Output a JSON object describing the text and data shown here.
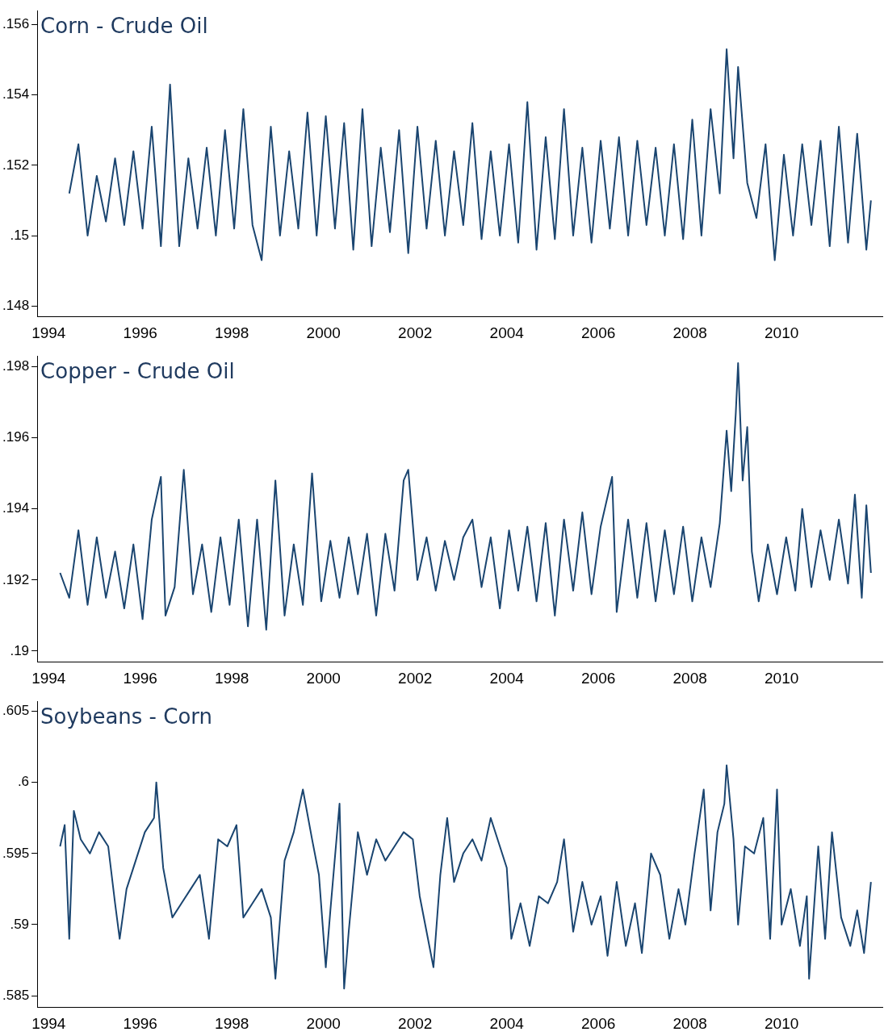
{
  "chart_data": [
    {
      "type": "line",
      "title": "Corn - Crude Oil",
      "grid": false,
      "legend": false,
      "marker": "none",
      "line_style": "solid",
      "xlim": [
        1993.75,
        2012.2
      ],
      "xticks": [
        1994,
        1996,
        1998,
        2000,
        2002,
        2004,
        2006,
        2008,
        2010
      ],
      "ylim": [
        0.1477,
        0.1564
      ],
      "yticks": [
        {
          "value": 0.148,
          "label": ".148"
        },
        {
          "value": 0.15,
          "label": ".15"
        },
        {
          "value": 0.152,
          "label": ".152"
        },
        {
          "value": 0.154,
          "label": ".154"
        },
        {
          "value": 0.156,
          "label": ".156"
        }
      ],
      "series": [
        {
          "color": "#1a4570",
          "x": [
            1994.45,
            1994.65,
            1994.85,
            1995.05,
            1995.25,
            1995.45,
            1995.65,
            1995.85,
            1996.05,
            1996.25,
            1996.45,
            1996.65,
            1996.85,
            1997.05,
            1997.25,
            1997.45,
            1997.65,
            1997.85,
            1998.05,
            1998.25,
            1998.45,
            1998.65,
            1998.85,
            1999.05,
            1999.25,
            1999.45,
            1999.65,
            1999.85,
            2000.05,
            2000.25,
            2000.45,
            2000.65,
            2000.85,
            2001.05,
            2001.25,
            2001.45,
            2001.65,
            2001.85,
            2002.05,
            2002.25,
            2002.45,
            2002.65,
            2002.85,
            2003.05,
            2003.25,
            2003.45,
            2003.65,
            2003.85,
            2004.05,
            2004.25,
            2004.45,
            2004.65,
            2004.85,
            2005.05,
            2005.25,
            2005.45,
            2005.65,
            2005.85,
            2006.05,
            2006.25,
            2006.45,
            2006.65,
            2006.85,
            2007.05,
            2007.25,
            2007.45,
            2007.65,
            2007.85,
            2008.05,
            2008.25,
            2008.45,
            2008.65,
            2008.8,
            2008.95,
            2009.05,
            2009.25,
            2009.45,
            2009.65,
            2009.85,
            2010.05,
            2010.25,
            2010.45,
            2010.65,
            2010.85,
            2011.05,
            2011.25,
            2011.45,
            2011.65,
            2011.85,
            2011.95
          ],
          "values": [
            0.1512,
            0.1526,
            0.15,
            0.1517,
            0.1504,
            0.1522,
            0.1503,
            0.1524,
            0.1502,
            0.1531,
            0.1497,
            0.1543,
            0.1497,
            0.1522,
            0.1502,
            0.1525,
            0.15,
            0.153,
            0.1502,
            0.1536,
            0.1503,
            0.1493,
            0.1531,
            0.15,
            0.1524,
            0.1502,
            0.1535,
            0.15,
            0.1534,
            0.1502,
            0.1532,
            0.1496,
            0.1536,
            0.1497,
            0.1525,
            0.1501,
            0.153,
            0.1495,
            0.1531,
            0.1502,
            0.1527,
            0.15,
            0.1524,
            0.1503,
            0.1532,
            0.1499,
            0.1524,
            0.15,
            0.1526,
            0.1498,
            0.1538,
            0.1496,
            0.1528,
            0.1499,
            0.1536,
            0.15,
            0.1525,
            0.1498,
            0.1527,
            0.1502,
            0.1528,
            0.15,
            0.1527,
            0.1503,
            0.1525,
            0.15,
            0.1526,
            0.1499,
            0.1533,
            0.15,
            0.1536,
            0.1512,
            0.1553,
            0.1522,
            0.1548,
            0.1515,
            0.1505,
            0.1526,
            0.1493,
            0.1523,
            0.15,
            0.1526,
            0.1503,
            0.1527,
            0.1497,
            0.1531,
            0.1498,
            0.1529,
            0.1496,
            0.151
          ]
        }
      ]
    },
    {
      "type": "line",
      "title": "Copper - Crude Oil",
      "grid": false,
      "legend": false,
      "marker": "none",
      "line_style": "solid",
      "xlim": [
        1993.75,
        2012.2
      ],
      "xticks": [
        1994,
        1996,
        1998,
        2000,
        2002,
        2004,
        2006,
        2008,
        2010
      ],
      "ylim": [
        0.1897,
        0.1983
      ],
      "yticks": [
        {
          "value": 0.19,
          "label": ".19"
        },
        {
          "value": 0.192,
          "label": ".192"
        },
        {
          "value": 0.194,
          "label": ".194"
        },
        {
          "value": 0.196,
          "label": ".196"
        },
        {
          "value": 0.198,
          "label": ".198"
        }
      ],
      "series": [
        {
          "color": "#1a4570",
          "x": [
            1994.25,
            1994.45,
            1994.65,
            1994.85,
            1995.05,
            1995.25,
            1995.45,
            1995.65,
            1995.85,
            1996.05,
            1996.25,
            1996.45,
            1996.55,
            1996.75,
            1996.95,
            1997.15,
            1997.35,
            1997.55,
            1997.75,
            1997.95,
            1998.15,
            1998.35,
            1998.55,
            1998.75,
            1998.95,
            1999.15,
            1999.35,
            1999.55,
            1999.75,
            1999.95,
            2000.15,
            2000.35,
            2000.55,
            2000.75,
            2000.95,
            2001.15,
            2001.35,
            2001.55,
            2001.75,
            2001.85,
            2002.05,
            2002.25,
            2002.45,
            2002.65,
            2002.85,
            2003.05,
            2003.25,
            2003.45,
            2003.65,
            2003.85,
            2004.05,
            2004.25,
            2004.45,
            2004.65,
            2004.85,
            2005.05,
            2005.25,
            2005.45,
            2005.65,
            2005.85,
            2006.05,
            2006.3,
            2006.4,
            2006.65,
            2006.85,
            2007.05,
            2007.25,
            2007.45,
            2007.65,
            2007.85,
            2008.05,
            2008.25,
            2008.45,
            2008.65,
            2008.8,
            2008.9,
            2009.0,
            2009.05,
            2009.15,
            2009.25,
            2009.35,
            2009.5,
            2009.7,
            2009.9,
            2010.1,
            2010.3,
            2010.45,
            2010.65,
            2010.85,
            2011.05,
            2011.25,
            2011.45,
            2011.6,
            2011.75,
            2011.85,
            2011.95
          ],
          "values": [
            0.1922,
            0.1915,
            0.1934,
            0.1913,
            0.1932,
            0.1915,
            0.1928,
            0.1912,
            0.193,
            0.1909,
            0.1937,
            0.1949,
            0.191,
            0.1918,
            0.1951,
            0.1916,
            0.193,
            0.1911,
            0.1932,
            0.1913,
            0.1937,
            0.1907,
            0.1937,
            0.1906,
            0.1948,
            0.191,
            0.193,
            0.1913,
            0.195,
            0.1914,
            0.1931,
            0.1915,
            0.1932,
            0.1916,
            0.1933,
            0.191,
            0.1933,
            0.1917,
            0.1948,
            0.1951,
            0.192,
            0.1932,
            0.1917,
            0.1931,
            0.192,
            0.1932,
            0.1937,
            0.1918,
            0.1932,
            0.1912,
            0.1934,
            0.1917,
            0.1935,
            0.1914,
            0.1936,
            0.191,
            0.1937,
            0.1917,
            0.1939,
            0.1916,
            0.1935,
            0.1949,
            0.1911,
            0.1937,
            0.1915,
            0.1936,
            0.1914,
            0.1934,
            0.1916,
            0.1935,
            0.1914,
            0.1932,
            0.1918,
            0.1936,
            0.1962,
            0.1945,
            0.1967,
            0.1981,
            0.1948,
            0.1963,
            0.1928,
            0.1914,
            0.193,
            0.1916,
            0.1932,
            0.1917,
            0.194,
            0.1918,
            0.1934,
            0.192,
            0.1937,
            0.1919,
            0.1944,
            0.1915,
            0.1941,
            0.1922
          ]
        }
      ]
    },
    {
      "type": "line",
      "title": "Soybeans - Corn",
      "grid": false,
      "legend": false,
      "marker": "none",
      "line_style": "solid",
      "xlim": [
        1993.75,
        2012.2
      ],
      "xticks": [
        1994,
        1996,
        1998,
        2000,
        2002,
        2004,
        2006,
        2008,
        2010
      ],
      "ylim": [
        0.5842,
        0.6057
      ],
      "yticks": [
        {
          "value": 0.585,
          "label": ".585"
        },
        {
          "value": 0.59,
          "label": ".59"
        },
        {
          "value": 0.595,
          "label": ".595"
        },
        {
          "value": 0.6,
          "label": ".6"
        },
        {
          "value": 0.605,
          "label": ".605"
        }
      ],
      "series": [
        {
          "color": "#1a4570",
          "x": [
            1994.25,
            1994.35,
            1994.45,
            1994.55,
            1994.7,
            1994.9,
            1995.1,
            1995.3,
            1995.45,
            1995.55,
            1995.7,
            1995.9,
            1996.1,
            1996.3,
            1996.35,
            1996.5,
            1996.7,
            1996.9,
            1997.1,
            1997.3,
            1997.5,
            1997.7,
            1997.9,
            1998.1,
            1998.25,
            1998.45,
            1998.65,
            1998.85,
            1998.95,
            1999.15,
            1999.35,
            1999.55,
            1999.75,
            1999.9,
            2000.05,
            2000.15,
            2000.35,
            2000.45,
            2000.55,
            2000.75,
            2000.95,
            2001.15,
            2001.35,
            2001.55,
            2001.75,
            2001.95,
            2002.1,
            2002.25,
            2002.4,
            2002.55,
            2002.7,
            2002.85,
            2003.05,
            2003.25,
            2003.45,
            2003.65,
            2003.85,
            2004.0,
            2004.1,
            2004.3,
            2004.5,
            2004.7,
            2004.9,
            2005.1,
            2005.25,
            2005.45,
            2005.65,
            2005.85,
            2006.05,
            2006.2,
            2006.4,
            2006.6,
            2006.8,
            2006.95,
            2007.15,
            2007.35,
            2007.55,
            2007.75,
            2007.9,
            2008.1,
            2008.3,
            2008.45,
            2008.6,
            2008.75,
            2008.8,
            2008.95,
            2009.05,
            2009.2,
            2009.4,
            2009.6,
            2009.75,
            2009.9,
            2010.0,
            2010.2,
            2010.4,
            2010.55,
            2010.6,
            2010.8,
            2010.95,
            2011.1,
            2011.3,
            2011.5,
            2011.65,
            2011.8,
            2011.95
          ],
          "values": [
            0.5955,
            0.597,
            0.589,
            0.598,
            0.596,
            0.595,
            0.5965,
            0.5955,
            0.5915,
            0.589,
            0.5925,
            0.5945,
            0.5965,
            0.5975,
            0.6,
            0.594,
            0.5905,
            0.5915,
            0.5925,
            0.5935,
            0.589,
            0.596,
            0.5955,
            0.597,
            0.5905,
            0.5915,
            0.5925,
            0.5905,
            0.5862,
            0.5945,
            0.5965,
            0.5995,
            0.596,
            0.5935,
            0.587,
            0.591,
            0.5985,
            0.5855,
            0.5895,
            0.5965,
            0.5935,
            0.596,
            0.5945,
            0.5955,
            0.5965,
            0.596,
            0.592,
            0.5895,
            0.587,
            0.5935,
            0.5975,
            0.593,
            0.595,
            0.596,
            0.5945,
            0.5975,
            0.5955,
            0.594,
            0.589,
            0.5915,
            0.5885,
            0.592,
            0.5915,
            0.593,
            0.596,
            0.5895,
            0.593,
            0.59,
            0.592,
            0.5878,
            0.593,
            0.5885,
            0.5915,
            0.588,
            0.595,
            0.5935,
            0.589,
            0.5925,
            0.59,
            0.595,
            0.5995,
            0.591,
            0.5965,
            0.5985,
            0.6012,
            0.596,
            0.59,
            0.5955,
            0.595,
            0.5975,
            0.589,
            0.5995,
            0.59,
            0.5925,
            0.5885,
            0.592,
            0.5862,
            0.5955,
            0.589,
            0.5965,
            0.5905,
            0.5885,
            0.591,
            0.588,
            0.593
          ]
        }
      ]
    }
  ]
}
